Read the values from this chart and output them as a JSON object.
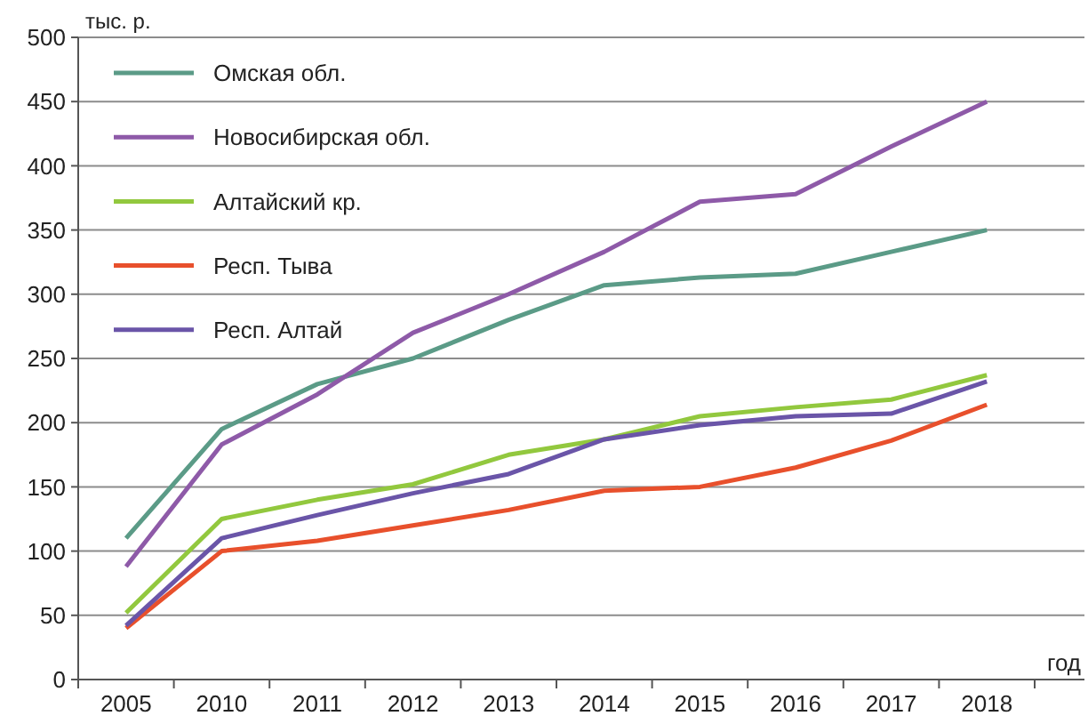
{
  "chart_data": {
    "type": "line",
    "ylabel": "тыс. р.",
    "xlabel": "год",
    "categories": [
      "2005",
      "2010",
      "2011",
      "2012",
      "2013",
      "2014",
      "2015",
      "2016",
      "2017",
      "2018"
    ],
    "series": [
      {
        "name": "Омская обл.",
        "color": "#5b9b87",
        "values": [
          110,
          195,
          230,
          250,
          280,
          307,
          313,
          316,
          333,
          350
        ]
      },
      {
        "name": "Новосибирская обл.",
        "color": "#8e5aa8",
        "values": [
          88,
          183,
          222,
          270,
          300,
          333,
          372,
          378,
          415,
          450
        ]
      },
      {
        "name": "Алтайский кр.",
        "color": "#92c83e",
        "values": [
          52,
          125,
          140,
          152,
          175,
          187,
          205,
          212,
          218,
          237
        ]
      },
      {
        "name": "Респ. Тыва",
        "color": "#e8502c",
        "values": [
          40,
          100,
          108,
          120,
          132,
          147,
          150,
          165,
          186,
          214
        ]
      },
      {
        "name": "Респ. Алтай",
        "color": "#6a55a8",
        "values": [
          42,
          110,
          128,
          145,
          160,
          187,
          198,
          205,
          207,
          232
        ]
      }
    ],
    "ylim": [
      0,
      500
    ],
    "yticks": [
      0,
      50,
      100,
      150,
      200,
      250,
      300,
      350,
      400,
      450,
      500
    ],
    "grid": "y",
    "legend": "top left",
    "marker": "none",
    "line_style": "solid"
  }
}
